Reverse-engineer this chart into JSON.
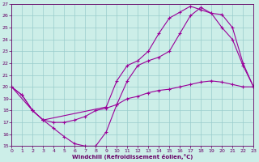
{
  "xlabel": "Windchill (Refroidissement éolien,°C)",
  "xlim": [
    0,
    23
  ],
  "ylim": [
    15,
    27
  ],
  "xticks": [
    0,
    1,
    2,
    3,
    4,
    5,
    6,
    7,
    8,
    9,
    10,
    11,
    12,
    13,
    14,
    15,
    16,
    17,
    18,
    19,
    20,
    21,
    22,
    23
  ],
  "yticks": [
    15,
    16,
    17,
    18,
    19,
    20,
    21,
    22,
    23,
    24,
    25,
    26,
    27
  ],
  "bg_color": "#cceee8",
  "grid_color": "#99cccc",
  "line_color": "#990099",
  "curve1_x": [
    0,
    1,
    2,
    3,
    4,
    5,
    6,
    7,
    8,
    9,
    10,
    11,
    12,
    13,
    14,
    15,
    16,
    17,
    18,
    19,
    20,
    21,
    22,
    23
  ],
  "curve1_y": [
    20,
    19.3,
    18.0,
    17.2,
    16.5,
    15.8,
    15.2,
    15.0,
    15.0,
    16.2,
    18.5,
    20.5,
    21.8,
    22.2,
    22.5,
    23.0,
    24.5,
    26.0,
    26.7,
    26.2,
    25.0,
    24.0,
    21.8,
    20.0
  ],
  "curve2_x": [
    0,
    2,
    3,
    9,
    10,
    11,
    12,
    13,
    14,
    15,
    16,
    17,
    18,
    19,
    20,
    21,
    22,
    23
  ],
  "curve2_y": [
    20.0,
    18.0,
    17.2,
    18.3,
    20.5,
    21.8,
    22.2,
    23.0,
    24.5,
    25.8,
    26.3,
    26.8,
    26.5,
    26.2,
    26.1,
    25.0,
    22.0,
    20.0
  ],
  "curve3_x": [
    0,
    1,
    2,
    3,
    4,
    5,
    6,
    7,
    8,
    9,
    10,
    11,
    12,
    13,
    14,
    15,
    16,
    17,
    18,
    19,
    20,
    21,
    22,
    23
  ],
  "curve3_y": [
    20.0,
    19.3,
    18.0,
    17.2,
    17.0,
    17.0,
    17.2,
    17.5,
    18.0,
    18.2,
    18.5,
    19.0,
    19.2,
    19.5,
    19.7,
    19.8,
    20.0,
    20.2,
    20.4,
    20.5,
    20.4,
    20.2,
    20.0,
    20.0
  ]
}
